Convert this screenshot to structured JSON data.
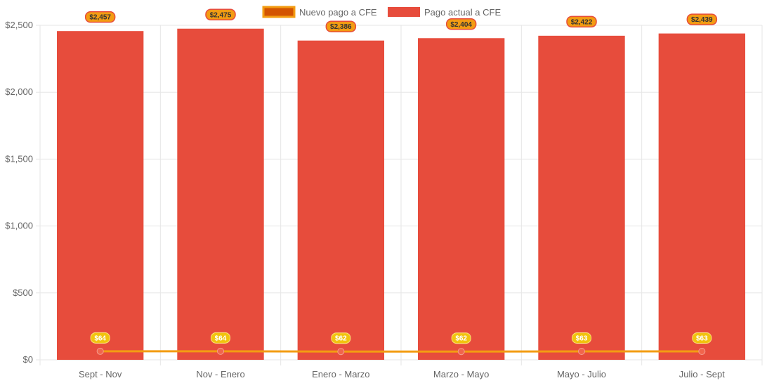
{
  "chart_data": {
    "type": "bar",
    "categories": [
      "Sept - Nov",
      "Nov - Enero",
      "Enero - Marzo",
      "Marzo - Mayo",
      "Mayo - Julio",
      "Julio - Sept"
    ],
    "series": [
      {
        "name": "Nuevo pago a CFE",
        "type": "line",
        "values": [
          64,
          64,
          62,
          62,
          63,
          63
        ],
        "data_labels": [
          "$64",
          "$64",
          "$62",
          "$62",
          "$63",
          "$63"
        ],
        "color": "#f39c12",
        "legend_fill": "#d35400",
        "point_color": "#f1654c",
        "label_background": "#f1c40f"
      },
      {
        "name": "Pago actual a CFE",
        "type": "bar",
        "values": [
          2457,
          2475,
          2386,
          2404,
          2422,
          2439
        ],
        "data_labels": [
          "$2,457",
          "$2,475",
          "$2,386",
          "$2,404",
          "$2,422",
          "$2,439"
        ],
        "color": "#e74c3c",
        "label_background": "#f39c12",
        "label_border": "#e74c3c"
      }
    ],
    "y_ticks": [
      "$0",
      "$500",
      "$1,000",
      "$1,500",
      "$2,000",
      "$2,500"
    ],
    "ylim": [
      0,
      2500
    ],
    "y_step": 500,
    "grid": true,
    "legend_position": "top",
    "grid_color": "#e6e6e6",
    "axis_label_color": "#666666"
  }
}
